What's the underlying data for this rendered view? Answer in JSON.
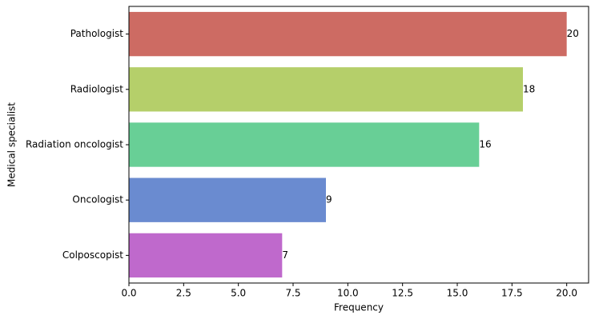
{
  "chart_data": {
    "type": "barh",
    "xlabel": "Frequency",
    "ylabel": "Medical specialist",
    "categories": [
      "Pathologist",
      "Radiologist",
      "Radiation oncologist",
      "Oncologist",
      "Colposcopist"
    ],
    "values": [
      20,
      18,
      16,
      9,
      7
    ],
    "colors": [
      "#cd6b63",
      "#b5cf6a",
      "#68cf96",
      "#6a8bd0",
      "#bf69cc"
    ],
    "xlim": [
      0,
      21
    ],
    "xticks": [
      {
        "value": 0,
        "label": "0.0"
      },
      2.5,
      {
        "value": 5,
        "label": "5.0"
      },
      7.5,
      {
        "value": 10,
        "label": "10.0"
      },
      12.5,
      {
        "value": 15,
        "label": "15.0"
      },
      17.5,
      {
        "value": 20,
        "label": "20.0"
      }
    ],
    "grid": false
  }
}
